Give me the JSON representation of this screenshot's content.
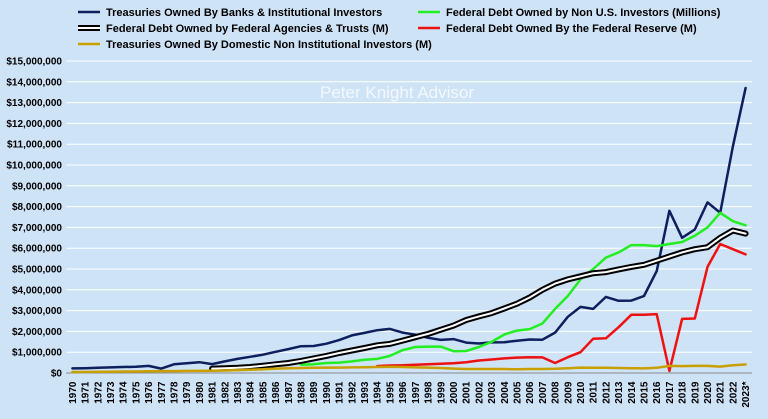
{
  "chart_data": {
    "type": "line",
    "title": "",
    "xlabel": "",
    "ylabel": "",
    "watermark": "Peter Knight Advisor",
    "ylim": [
      0,
      15000000
    ],
    "y_ticks": [
      0,
      1000000,
      2000000,
      3000000,
      4000000,
      5000000,
      6000000,
      7000000,
      8000000,
      9000000,
      10000000,
      11000000,
      12000000,
      13000000,
      14000000,
      15000000
    ],
    "y_tick_labels": [
      "$0",
      "$1,000,000",
      "$2,000,000",
      "$3,000,000",
      "$4,000,000",
      "$5,000,000",
      "$6,000,000",
      "$7,000,000",
      "$8,000,000",
      "$9,000,000",
      "$10,000,000",
      "$11,000,000",
      "$12,000,000",
      "$13,000,000",
      "$14,000,000",
      "$15,000,000"
    ],
    "categories": [
      "1970",
      "1971",
      "1972",
      "1973",
      "1974",
      "1975",
      "1976",
      "1977",
      "1978",
      "1979",
      "1980",
      "1981",
      "1982",
      "1983",
      "1984",
      "1985",
      "1986",
      "1987",
      "1988",
      "1989",
      "1990",
      "1991",
      "1992",
      "1993",
      "1994",
      "1995",
      "1996",
      "1997",
      "1998",
      "1999",
      "2000",
      "2001",
      "2002",
      "2003",
      "2004",
      "2005",
      "2006",
      "2007",
      "2008",
      "2009",
      "2010",
      "2011",
      "2012",
      "2013",
      "2014",
      "2015",
      "2016",
      "2017",
      "2018",
      "2019",
      "2020",
      "2021",
      "2022",
      "2023*"
    ],
    "grid": "horizontal",
    "legend": "top",
    "series": [
      {
        "name": "Treasuries Owned By Banks & Institutional Investors",
        "color": "#0d1f5c",
        "style": "solid",
        "values": [
          220000,
          230000,
          250000,
          270000,
          290000,
          300000,
          340000,
          210000,
          420000,
          470000,
          520000,
          430000,
          560000,
          680000,
          780000,
          880000,
          1020000,
          1150000,
          1290000,
          1300000,
          1410000,
          1580000,
          1810000,
          1930000,
          2060000,
          2120000,
          1940000,
          1840000,
          1690000,
          1590000,
          1630000,
          1460000,
          1420000,
          1470000,
          1480000,
          1550000,
          1610000,
          1600000,
          1940000,
          2700000,
          3180000,
          3080000,
          3660000,
          3470000,
          3480000,
          3700000,
          4900000,
          7800000,
          6500000,
          6900000,
          8200000,
          7700000,
          10900000,
          13700000
        ]
      },
      {
        "name": "Federal Debt Owned by Non U.S. Investors (Millions)",
        "color": "#22ee22",
        "style": "solid",
        "values": [
          null,
          null,
          null,
          null,
          null,
          null,
          null,
          null,
          null,
          null,
          null,
          null,
          null,
          null,
          null,
          null,
          null,
          null,
          400000,
          420000,
          480000,
          500000,
          560000,
          640000,
          680000,
          820000,
          1100000,
          1250000,
          1270000,
          1270000,
          1050000,
          1060000,
          1250000,
          1500000,
          1850000,
          2040000,
          2110000,
          2380000,
          3080000,
          3700000,
          4500000,
          5000000,
          5550000,
          5800000,
          6150000,
          6150000,
          6100000,
          6200000,
          6300000,
          6600000,
          7000000,
          7700000,
          7300000,
          7100000
        ]
      },
      {
        "name": "Federal Debt Owned by Federal Agencies & Trusts (M)",
        "color": "#000000",
        "style": "double",
        "values": [
          null,
          null,
          null,
          null,
          null,
          null,
          null,
          null,
          null,
          null,
          null,
          210000,
          230000,
          250000,
          290000,
          350000,
          420000,
          480000,
          580000,
          700000,
          820000,
          960000,
          1080000,
          1200000,
          1330000,
          1400000,
          1560000,
          1720000,
          1880000,
          2080000,
          2280000,
          2550000,
          2720000,
          2880000,
          3100000,
          3330000,
          3630000,
          4000000,
          4300000,
          4500000,
          4650000,
          4800000,
          4850000,
          4980000,
          5100000,
          5200000,
          5400000,
          5600000,
          5800000,
          5950000,
          6050000,
          6500000,
          6850000,
          6700000
        ]
      },
      {
        "name": "Federal Debt Owned By the Federal Reserve (M)",
        "color": "#ee1111",
        "style": "solid",
        "values": [
          null,
          null,
          null,
          null,
          null,
          null,
          null,
          null,
          null,
          null,
          null,
          null,
          null,
          null,
          null,
          null,
          null,
          null,
          null,
          null,
          null,
          null,
          null,
          null,
          330000,
          360000,
          370000,
          400000,
          420000,
          440000,
          470000,
          520000,
          600000,
          650000,
          700000,
          740000,
          760000,
          750000,
          480000,
          760000,
          1000000,
          1650000,
          1670000,
          2200000,
          2800000,
          2800000,
          2830000,
          100000,
          2600000,
          2620000,
          5100000,
          6200000,
          5950000,
          5700000
        ]
      },
      {
        "name": "Treasuries Owned By Domestic Non Institutional Investors (M)",
        "color": "#c9a000",
        "style": "solid",
        "values": [
          50000,
          50000,
          60000,
          60000,
          70000,
          70000,
          80000,
          90000,
          90000,
          100000,
          100000,
          110000,
          120000,
          140000,
          160000,
          180000,
          210000,
          230000,
          240000,
          250000,
          260000,
          260000,
          270000,
          280000,
          290000,
          300000,
          290000,
          270000,
          260000,
          240000,
          210000,
          190000,
          190000,
          190000,
          190000,
          180000,
          190000,
          190000,
          200000,
          230000,
          260000,
          250000,
          250000,
          240000,
          230000,
          220000,
          250000,
          340000,
          330000,
          340000,
          340000,
          310000,
          370000,
          410000
        ]
      }
    ]
  }
}
